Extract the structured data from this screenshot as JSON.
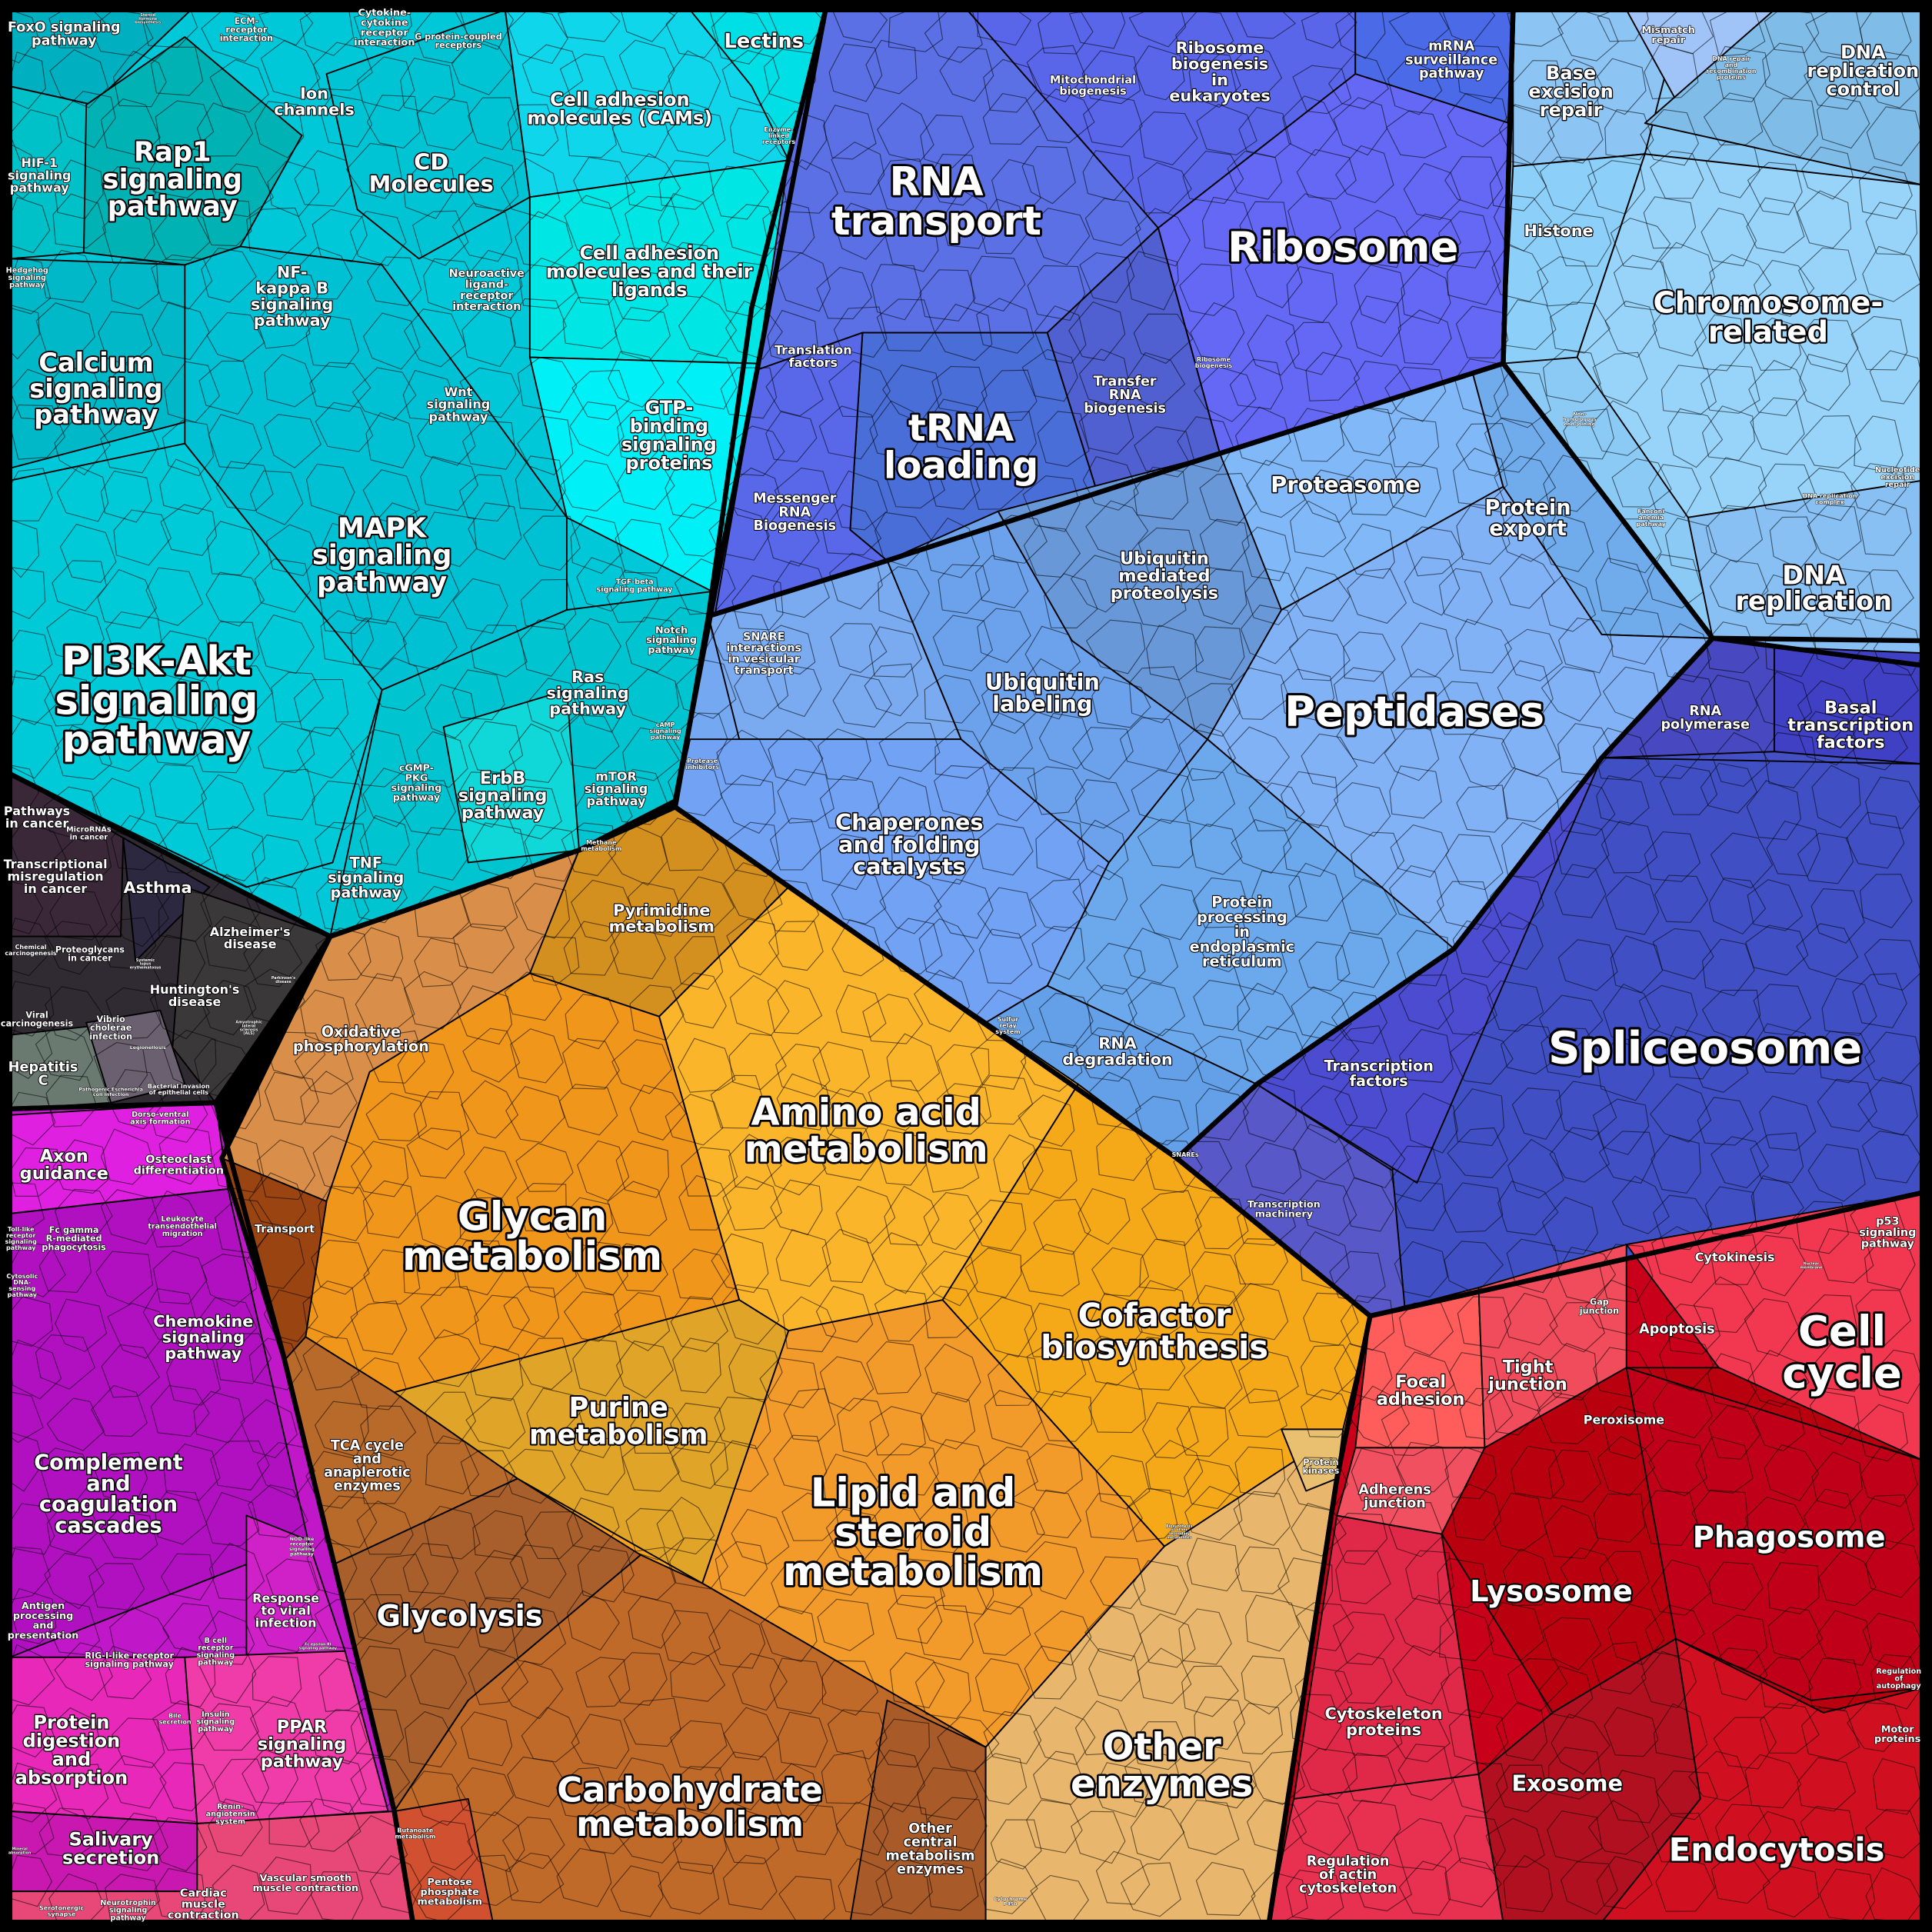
{
  "colors": {
    "signaling": "#00c8d8",
    "genetic_information": "#5a6ee6",
    "dna_chromosome": "#8ccaf6",
    "protein_processing": "#74a8f0",
    "transcription_splicing": "#4450c4",
    "cellular_processes": "#c8001a",
    "metabolism": "#f5a020",
    "human_diseases": "#302a32",
    "organismal_systems": "#c018c8"
  },
  "labels": {
    "signaling": {
      "foxo": "FoxO signaling\npathway",
      "steroid": "Steroid\nhormone\nbiosynthesis",
      "ecm": "ECM-\nreceptor\ninteraction",
      "cytokine": "Cytokine-\ncytokine\nreceptor\ninteraction",
      "gpcr": "G protein-coupled\nreceptors",
      "lectins": "Lectins",
      "ion": "Ion\nchannels",
      "hif1": "HIF-1\nsignaling\npathway",
      "rap1": "Rap1\nsignaling\npathway",
      "cd": "CD\nMolecules",
      "cams": "Cell adhesion\nmolecules (CAMs)",
      "enzyme_linked": "Enzyme-\nlinked\nreceptors",
      "hedgehog": "Hedgehog\nsignaling\npathway",
      "nfkb": "NF-\nkappa B\nsignaling\npathway",
      "neuroactive": "Neuroactive\nligand-\nreceptor\ninteraction",
      "cam_ligands": "Cell adhesion\nmolecules and their\nligands",
      "calcium": "Calcium\nsignaling\npathway",
      "wnt": "Wnt\nsignaling\npathway",
      "gtp": "GTP-\nbinding\nsignaling\nproteins",
      "mapk": "MAPK\nsignaling\npathway",
      "pi3k": "PI3K-Akt\nsignaling\npathway",
      "tgfb": "TGF-beta\nsignaling pathway",
      "notch": "Notch\nsignaling\npathway",
      "ras": "Ras\nsignaling\npathway",
      "camp": "cAMP\nsignaling\npathway",
      "cgmp": "cGMP-\nPKG\nsignaling\npathway",
      "erbb": "ErbB\nsignaling\npathway",
      "mtor": "mTOR\nsignaling\npathway",
      "tnf": "TNF\nsignaling\npathway"
    },
    "diseases": {
      "pathways_cancer": "Pathways\nin cancer",
      "microrna": "MicroRNAs\nin cancer",
      "transcriptional": "Transcriptional\nmisregulation\nin cancer",
      "asthma": "Asthma",
      "alzheimers": "Alzheimer's\ndisease",
      "parkinsons": "Parkinson's\ndisease",
      "chemical": "Chemical\ncarcinogenesis",
      "proteoglycans": "Proteoglycans\nin cancer",
      "lupus": "Systemic\nlupus\nerythematosus",
      "huntingtons": "Huntington's\ndisease",
      "als": "Amyotrophic\nlateral\nsclerosis\n(ALS)",
      "viral": "Viral\ncarcinogenesis",
      "vibrio": "Vibrio\ncholerae\ninfection",
      "legionellosis": "Legionellosis",
      "hepatitis": "Hepatitis\nC",
      "ecoli": "Pathogenic Escherichia\ncoli infection",
      "bacterial": "Bacterial invasion\nof epithelial cells"
    },
    "organismal": {
      "dorso": "Dorso-ventral\naxis formation",
      "axon": "Axon\nguidance",
      "osteoclast": "Osteoclast\ndifferentiation",
      "toll": "Toll-like\nreceptor\nsignaling\npathway",
      "fcgamma": "Fc gamma\nR-mediated\nphagocytosis",
      "leukocyte": "Leukocyte\ntransendothelial\nmigration",
      "cytosolic": "Cytosolic\nDNA-\nsensing\npathway",
      "chemokine": "Chemokine\nsignaling\npathway",
      "complement": "Complement\nand\ncoagulation\ncascades",
      "nod": "NOD-like\nreceptor\nsignaling\npathway",
      "antigen": "Antigen\nprocessing\nand\npresentation",
      "viral_response": "Response\nto viral\ninfection",
      "rigi": "RIG-I-like receptor\nsignaling pathway",
      "bcell": "B cell\nreceptor\nsignaling\npathway",
      "fcepsilon": "Fc epsilon RI\nsignaling pathway",
      "protein_digestion": "Protein\ndigestion\nand\nabsorption",
      "bile": "Bile\nsecretion",
      "insulin": "Insulin\nsignaling\npathway",
      "ppar": "PPAR\nsignaling\npathway",
      "renin": "Renin-\nangiotensin\nsystem",
      "salivary": "Salivary\nsecretion",
      "mineral": "Mineral\nabsorption",
      "cardiac": "Cardiac\nmuscle\ncontraction",
      "vascular": "Vascular smooth\nmuscle contraction",
      "serotonergic": "Serotonergic\nsynapse",
      "neurotrophin": "Neurotrophin\nsignaling\npathway"
    },
    "metabolism": {
      "methane": "Methane\nmetabolism",
      "pyrimidine": "Pyrimidine\nmetabolism",
      "oxphos": "Oxidative\nphosphorylation",
      "amino": "Amino acid\nmetabolism",
      "glycan": "Glycan\nmetabolism",
      "transport": "Transport",
      "cofactor": "Cofactor\nbiosynthesis",
      "purine": "Purine\nmetabolism",
      "tca": "TCA cycle\nand\nanaplerotic\nenzymes",
      "lipid": "Lipid and\nsteroid\nmetabolism",
      "secondary": "Biosynthesis\nof other\nsecondary\nmetabolites",
      "kinases": "Protein\nkinases",
      "glycolysis": "Glycolysis",
      "other_enzymes": "Other\nenzymes",
      "carbohydrate": "Carbohydrate\nmetabolism",
      "other_central": "Other\ncentral\nmetabolism\nenzymes",
      "butanoate": "Butanoate\nmetabolism",
      "pentose": "Pentose\nphosphate\nmetabolism",
      "p450": "Cytochrome\nP450"
    },
    "genetic": {
      "mito": "Mitochondrial\nbiogenesis",
      "ribo_euk": "Ribosome\nbiogenesis\nin\neukaryotes",
      "mrna_surv": "mRNA\nsurveillance\npathway",
      "rna_transport": "RNA\ntransport",
      "ribosome": "Ribosome",
      "translation": "Translation\nfactors",
      "trna_bio": "Transfer\nRNA\nbiogenesis",
      "ribo_bio": "Ribosome\nbiogenesis",
      "trna_loading": "tRNA\nloading",
      "messenger": "Messenger\nRNA\nBiogenesis"
    },
    "dna": {
      "mismatch": "Mismatch\nrepair",
      "base_excision": "Base\nexcision\nrepair",
      "dna_repair": "DNA repair\nand\nrecombination\nproteins",
      "dna_rep_control": "DNA\nreplication\ncontrol",
      "histone": "Histone",
      "chromosome": "Chromosome-\nrelated",
      "nhej": "Non-\nhomologous\nend-joining",
      "fanconi": "Fanconi\nanemia\npathway",
      "dna_rep_complex": "DNA replication\ncomplex",
      "nucleotide": "Nucleotide\nexcision\nrepair",
      "dna_replication": "DNA\nreplication"
    },
    "protein": {
      "proteasome": "Proteasome",
      "export": "Protein\nexport",
      "ubiq_proteolysis": "Ubiquitin\nmediated\nproteolysis",
      "snare_vesicular": "SNARE\ninteractions\nin vesicular\ntransport",
      "ubiq_labeling": "Ubiquitin\nlabeling",
      "peptidases": "Peptidases",
      "protease_inh": "Protease\ninhibitors",
      "chaperones": "Chaperones\nand folding\ncatalysts",
      "er_processing": "Protein\nprocessing\nin\nendoplasmic\nreticulum",
      "sulfur": "Sulfur\nrelay\nsystem",
      "rna_degradation": "RNA\ndegradation",
      "snares": "SNAREs"
    },
    "transcription": {
      "rna_pol": "RNA\npolymerase",
      "basal": "Basal\ntranscription\nfactors",
      "spliceosome": "Spliceosome",
      "tf": "Transcription\nfactors",
      "machinery": "Transcription\nmachinery"
    },
    "cellular": {
      "p53": "p53\nsignaling\npathway",
      "cytokinesis": "Cytokinesis",
      "nuclear": "Nuclear\nmembrane",
      "gap": "Gap\njunction",
      "apoptosis": "Apoptosis",
      "cell_cycle": "Cell\ncycle",
      "focal": "Focal\nadhesion",
      "tight": "Tight\njunction",
      "peroxisome": "Peroxisome",
      "adherens": "Adherens\njunction",
      "phagosome": "Phagosome",
      "lysosome": "Lysosome",
      "autophagy": "Regulation\nof\nautophagy",
      "cytoskeleton": "Cytoskeleton\nproteins",
      "motor": "Motor\nproteins",
      "exosome": "Exosome",
      "endocytosis": "Endocytosis",
      "actin": "Regulation\nof actin\ncytoskeleton"
    }
  }
}
